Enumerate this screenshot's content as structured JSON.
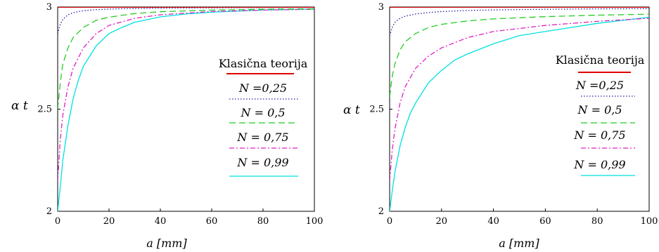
{
  "chart_data": [
    {
      "type": "line",
      "title": "",
      "xlabel": "a [mm]",
      "ylabel": "α t",
      "xlim": [
        0,
        100
      ],
      "ylim": [
        2,
        3
      ],
      "xticks": [
        "0",
        "20",
        "40",
        "60",
        "80",
        "100"
      ],
      "yticks": [
        "2",
        "2.5",
        "3"
      ],
      "grid": false,
      "legend_position": "right",
      "series": [
        {
          "name": "Klasična teorija",
          "color": "#e00000",
          "dash": "solid",
          "x": [
            0,
            100
          ],
          "y": [
            3.0,
            3.0
          ]
        },
        {
          "name": "N =0,25",
          "color": "#2020a0",
          "dash": "dotted",
          "x": [
            0,
            1,
            2,
            4,
            6,
            10,
            15,
            20,
            30,
            40,
            60,
            80,
            100
          ],
          "y": [
            2.87,
            2.915,
            2.94,
            2.962,
            2.972,
            2.982,
            2.987,
            2.99,
            2.993,
            2.995,
            2.996,
            2.997,
            2.998
          ]
        },
        {
          "name": "N = 0,5",
          "color": "#22cc22",
          "dash": "dashed",
          "x": [
            0,
            1,
            2,
            4,
            6,
            10,
            15,
            20,
            30,
            40,
            60,
            80,
            100
          ],
          "y": [
            2.5,
            2.63,
            2.72,
            2.8,
            2.85,
            2.9,
            2.935,
            2.95,
            2.968,
            2.977,
            2.985,
            2.989,
            2.991
          ]
        },
        {
          "name": "N = 0,75",
          "color": "#e020c0",
          "dash": "dashdot",
          "x": [
            0,
            1,
            2,
            4,
            6,
            10,
            15,
            20,
            30,
            40,
            60,
            80,
            100
          ],
          "y": [
            2.15,
            2.35,
            2.47,
            2.61,
            2.7,
            2.8,
            2.87,
            2.91,
            2.945,
            2.962,
            2.978,
            2.985,
            2.989
          ]
        },
        {
          "name": "N = 0,99",
          "color": "#00e0e0",
          "dash": "solid",
          "x": [
            0,
            1,
            2,
            4,
            6,
            8,
            10,
            15,
            20,
            25,
            30,
            40,
            50,
            60,
            80,
            100
          ],
          "y": [
            2.0,
            2.12,
            2.25,
            2.42,
            2.55,
            2.64,
            2.71,
            2.81,
            2.87,
            2.9,
            2.925,
            2.952,
            2.966,
            2.975,
            2.985,
            2.99
          ]
        }
      ]
    },
    {
      "type": "line",
      "title": "",
      "xlabel": "a [mm]",
      "ylabel": "α t",
      "xlim": [
        0,
        100
      ],
      "ylim": [
        2,
        3
      ],
      "xticks": [
        "0",
        "20",
        "40",
        "60",
        "80",
        "100"
      ],
      "yticks": [
        "2",
        "2.5",
        "3"
      ],
      "grid": false,
      "legend_position": "right",
      "series": [
        {
          "name": "Klasična teorija",
          "color": "#e00000",
          "dash": "solid",
          "x": [
            0,
            100
          ],
          "y": [
            3.0,
            3.0
          ]
        },
        {
          "name": "N =0,25",
          "color": "#2020a0",
          "dash": "dotted",
          "x": [
            0,
            1,
            2,
            4,
            6,
            10,
            15,
            20,
            30,
            40,
            60,
            80,
            100
          ],
          "y": [
            2.86,
            2.9,
            2.925,
            2.945,
            2.955,
            2.966,
            2.973,
            2.978,
            2.983,
            2.986,
            2.989,
            2.991,
            2.992
          ]
        },
        {
          "name": "N = 0,5",
          "color": "#22cc22",
          "dash": "dashed",
          "x": [
            0,
            1,
            2,
            4,
            6,
            10,
            15,
            20,
            30,
            40,
            60,
            80,
            100
          ],
          "y": [
            2.56,
            2.66,
            2.72,
            2.79,
            2.83,
            2.87,
            2.9,
            2.915,
            2.932,
            2.942,
            2.953,
            2.96,
            2.965
          ]
        },
        {
          "name": "N = 0,75",
          "color": "#e020c0",
          "dash": "dashdot",
          "x": [
            0,
            1,
            2,
            4,
            6,
            10,
            15,
            20,
            30,
            40,
            60,
            80,
            100
          ],
          "y": [
            2.15,
            2.3,
            2.4,
            2.53,
            2.61,
            2.7,
            2.76,
            2.8,
            2.85,
            2.88,
            2.91,
            2.93,
            2.945
          ]
        },
        {
          "name": "N = 0,99",
          "color": "#00e0e0",
          "dash": "solid",
          "x": [
            0,
            1,
            2,
            4,
            6,
            8,
            10,
            15,
            20,
            25,
            30,
            40,
            50,
            60,
            70,
            80,
            90,
            100
          ],
          "y": [
            2.0,
            2.1,
            2.19,
            2.32,
            2.41,
            2.48,
            2.53,
            2.63,
            2.69,
            2.74,
            2.77,
            2.82,
            2.86,
            2.88,
            2.9,
            2.92,
            2.935,
            2.95
          ]
        }
      ]
    }
  ]
}
